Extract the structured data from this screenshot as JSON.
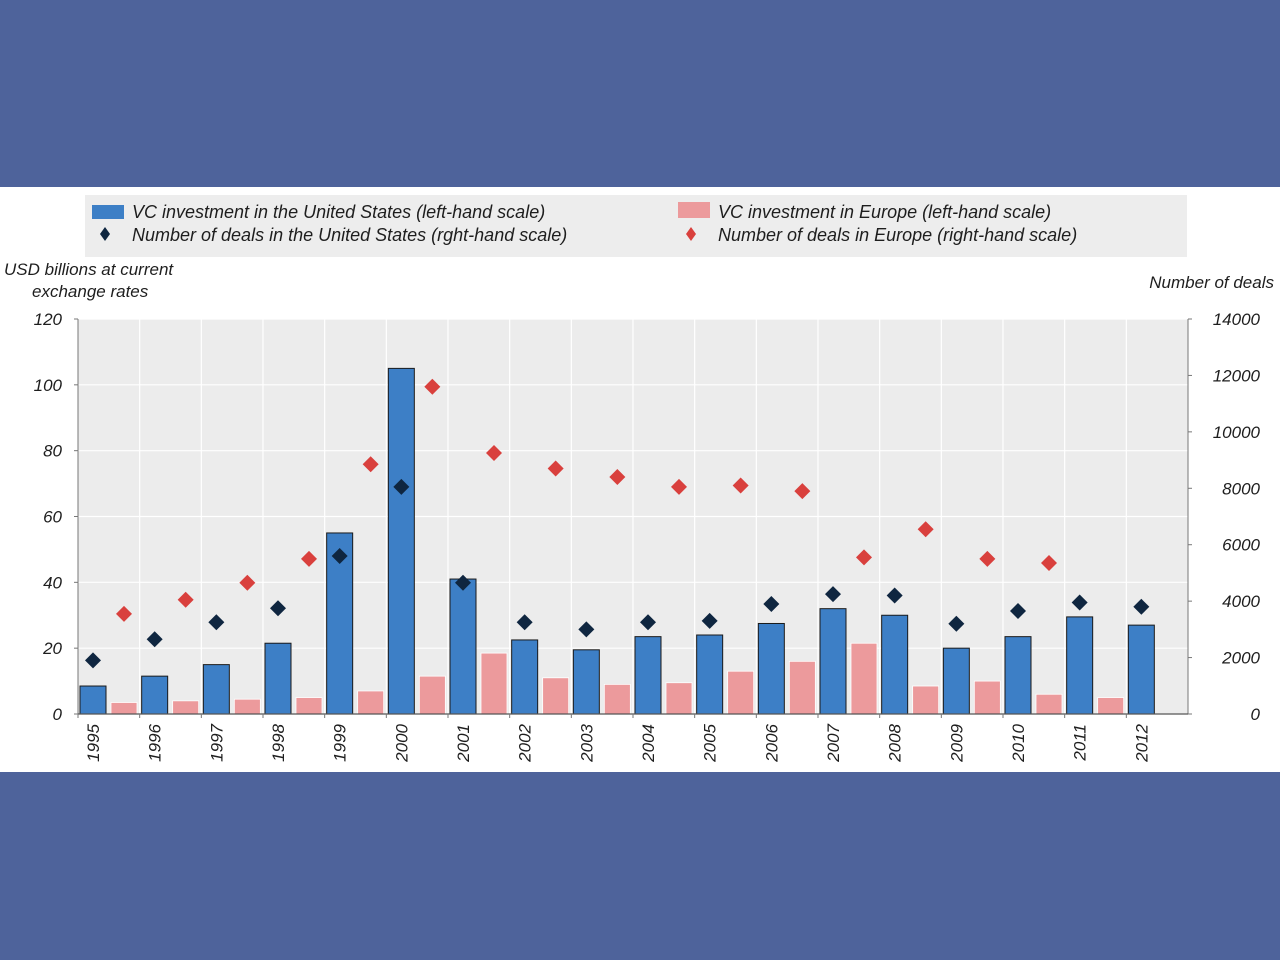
{
  "colors": {
    "frame": "#4e639b",
    "us_bar": "#3d7fc6",
    "eu_bar": "#ec9a9c",
    "us_deals": "#0f2640",
    "eu_deals": "#d9403d",
    "plot_bg": "#ececec",
    "legend_bg": "#ededed"
  },
  "chart_data": {
    "type": "bar",
    "categories": [
      "1995",
      "1996",
      "1997",
      "1998",
      "1999",
      "2000",
      "2001",
      "2002",
      "2003",
      "2004",
      "2005",
      "2006",
      "2007",
      "2008",
      "2009",
      "2010",
      "2011",
      "2012"
    ],
    "series": [
      {
        "name": "VC investment in the United States (left-hand scale)",
        "type": "bar",
        "axis": "left",
        "values": [
          8.5,
          11.5,
          15,
          21.5,
          55,
          105,
          41,
          22.5,
          19.5,
          23.5,
          24,
          27.5,
          32,
          30,
          20,
          23.5,
          29.5,
          27
        ]
      },
      {
        "name": "VC investment in Europe (left-hand scale)",
        "type": "bar",
        "axis": "left",
        "values": [
          3.5,
          4,
          4.5,
          5,
          7,
          11.5,
          18.5,
          11,
          9,
          9.5,
          13,
          16,
          21.5,
          8.5,
          10,
          6,
          5,
          null
        ]
      },
      {
        "name": "Number of deals in the United States (rght-hand scale)",
        "type": "scatter",
        "axis": "right",
        "marker": "diamond",
        "values": [
          1900,
          2650,
          3250,
          3750,
          5600,
          8050,
          4650,
          3250,
          3000,
          3250,
          3300,
          3900,
          4250,
          4200,
          3200,
          3650,
          3950,
          3800
        ]
      },
      {
        "name": "Number of deals in Europe (right-hand scale)",
        "type": "scatter",
        "axis": "right",
        "marker": "diamond",
        "values": [
          3550,
          4050,
          4650,
          5500,
          8850,
          11600,
          9250,
          8700,
          8400,
          8050,
          8100,
          7900,
          5550,
          6550,
          5500,
          5350,
          null,
          null
        ]
      }
    ],
    "ylabel_left": "USD billions at current exchange rates",
    "ylabel_right": "Number of deals",
    "ylim_left": [
      0,
      120
    ],
    "yticks_left": [
      0,
      20,
      40,
      60,
      80,
      100,
      120
    ],
    "ylim_right": [
      0,
      14000
    ],
    "yticks_right": [
      0,
      2000,
      4000,
      6000,
      8000,
      10000,
      12000,
      14000
    ],
    "legend_placement": "top",
    "grid": true
  }
}
